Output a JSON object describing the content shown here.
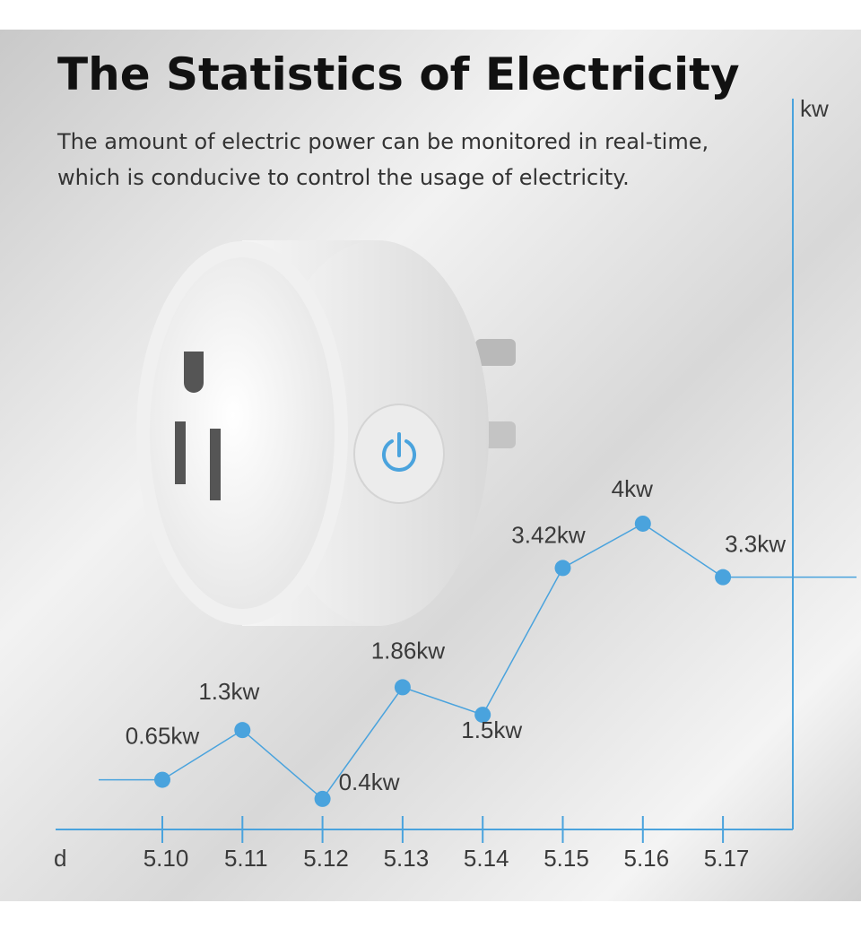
{
  "chart_data": {
    "type": "line",
    "title": "The Statistics of Electricity",
    "subtitle": [
      "The amount of electric power can be monitored in real-time,",
      "which is conducive to control the usage of electricity."
    ],
    "x_label": "d",
    "y_label": "kw",
    "categories": [
      "5.10",
      "5.11",
      "5.12",
      "5.13",
      "5.14",
      "5.15",
      "5.16",
      "5.17"
    ],
    "values": [
      0.65,
      1.3,
      0.4,
      1.86,
      1.5,
      3.42,
      4,
      3.3
    ],
    "value_labels": [
      "0.65kw",
      "1.3kw",
      "0.4kw",
      "1.86kw",
      "1.5kw",
      "3.42kw",
      "4kw",
      "3.3kw"
    ],
    "ylim": [
      0,
      9.5
    ],
    "color": "#4aa3dd"
  }
}
